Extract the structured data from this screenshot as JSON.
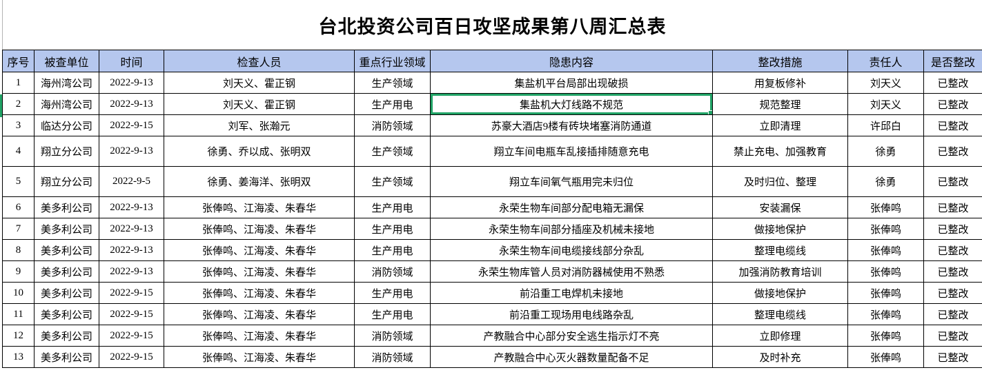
{
  "title": "台北投资公司百日攻坚成果第八周汇总表",
  "table": {
    "columns": [
      "序号",
      "被查单位",
      "时间",
      "检查人员",
      "重点行业领域",
      "隐患内容",
      "整改措施",
      "责任人",
      "是否整改"
    ],
    "rows": [
      [
        "1",
        "海州湾公司",
        "2022-9-13",
        "刘天义、霍正钢",
        "生产领域",
        "集盐机平台局部出现破损",
        "用复板修补",
        "刘天义",
        "已整改"
      ],
      [
        "2",
        "海州湾公司",
        "2022-9-13",
        "刘天义、霍正钢",
        "生产用电",
        "集盐机大灯线路不规范",
        "规范整理",
        "刘天义",
        "已整改"
      ],
      [
        "3",
        "临达分公司",
        "2022-9-15",
        "刘军、张瀚元",
        "消防领域",
        "苏豪大酒店9楼有砖块堵塞消防通道",
        "立即清理",
        "许邱白",
        "已整改"
      ],
      [
        "4",
        "翔立分公司",
        "2022-9-13",
        "徐勇、乔以成、张明双",
        "生产领域",
        "翔立车间电瓶车乱接插排随意充电",
        "禁止充电、加强教育",
        "徐勇",
        "已整改"
      ],
      [
        "5",
        "翔立分公司",
        "2022-9-5",
        "徐勇、姜海洋、张明双",
        "生产领域",
        "翔立车间氧气瓶用完未归位",
        "及时归位、整理",
        "徐勇",
        "已整改"
      ],
      [
        "6",
        "美多利公司",
        "2022-9-13",
        "张俸鸣、江海凌、朱春华",
        "生产用电",
        "永荣生物车间部分配电箱无漏保",
        "安装漏保",
        "张俸鸣",
        "已整改"
      ],
      [
        "7",
        "美多利公司",
        "2022-9-13",
        "张俸鸣、江海凌、朱春华",
        "生产用电",
        "永荣生物车间部分插座及机械未接地",
        "做接地保护",
        "张俸鸣",
        "已整改"
      ],
      [
        "8",
        "美多利公司",
        "2022-9-13",
        "张俸鸣、江海凌、朱春华",
        "生产用电",
        "永荣生物车间电缆接线部分杂乱",
        "整理电缆线",
        "张俸鸣",
        "已整改"
      ],
      [
        "9",
        "美多利公司",
        "2022-9-13",
        "张俸鸣、江海凌、朱春华",
        "消防领域",
        "永荣生物库管人员对消防器械使用不熟悉",
        "加强消防教育培训",
        "张俸鸣",
        "已整改"
      ],
      [
        "10",
        "美多利公司",
        "2022-9-15",
        "张俸鸣、江海凌、朱春华",
        "生产用电",
        "前沿重工电焊机未接地",
        "做接地保护",
        "张俸鸣",
        "已整改"
      ],
      [
        "11",
        "美多利公司",
        "2022-9-15",
        "张俸鸣、江海凌、朱春华",
        "生产用电",
        "前沿重工现场用电线路杂乱",
        "整理电缆线",
        "张俸鸣",
        "已整改"
      ],
      [
        "12",
        "美多利公司",
        "2022-9-15",
        "张俸鸣、江海凌、朱春华",
        "消防领域",
        "产教融合中心部分安全逃生指示灯不亮",
        "立即修理",
        "张俸鸣",
        "已整改"
      ],
      [
        "13",
        "美多利公司",
        "2022-9-15",
        "张俸鸣、江海凌、朱春华",
        "消防领域",
        "产教融合中心灭火器数量配备不足",
        "及时补充",
        "张俸鸣",
        "已整改"
      ]
    ],
    "selection": {
      "row_index": 1,
      "col_index": 5
    }
  },
  "colors": {
    "header_bg": "#b5c7ee",
    "selection_green": "#21a366",
    "grid_border": "#000000"
  }
}
